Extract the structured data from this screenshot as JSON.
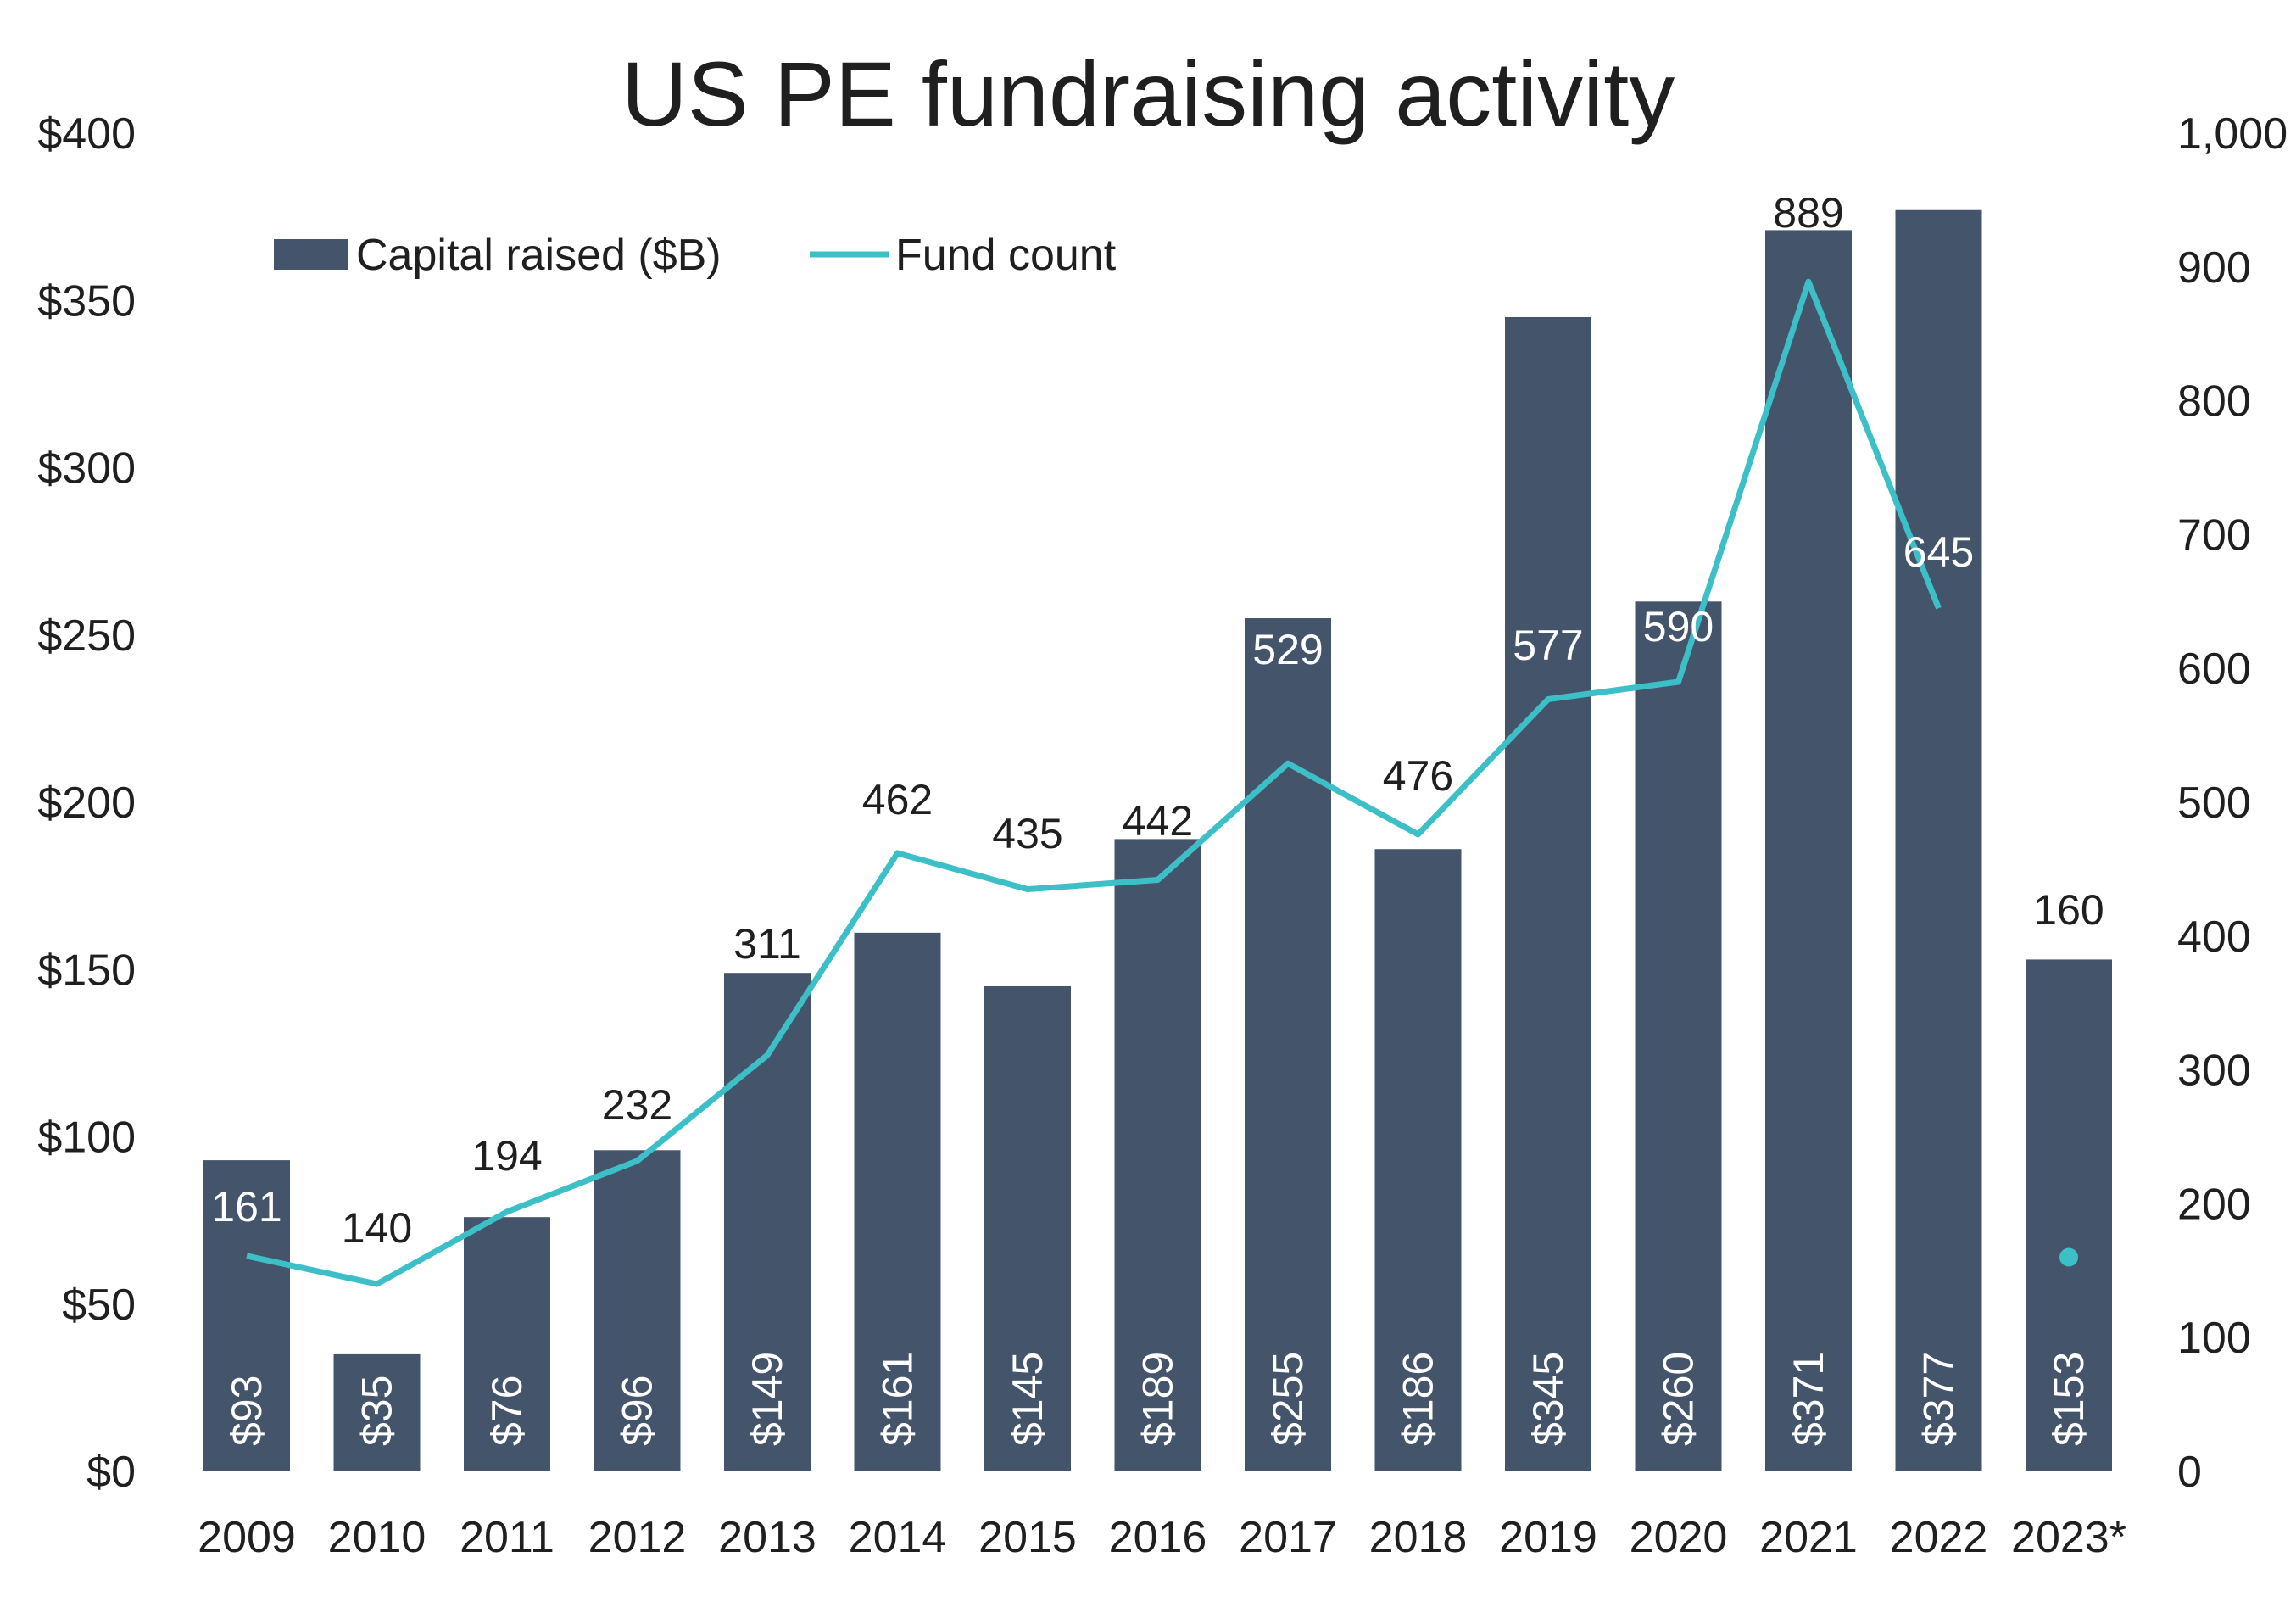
{
  "chart_data": {
    "type": "bar",
    "title": "US PE fundraising activity",
    "categories": [
      "2009",
      "2010",
      "2011",
      "2012",
      "2013",
      "2014",
      "2015",
      "2016",
      "2017",
      "2018",
      "2019",
      "2020",
      "2021",
      "2022",
      "2023*"
    ],
    "series": [
      {
        "name": "Capital raised ($B)",
        "type": "bar",
        "axis": "left",
        "color": "#44546a",
        "values": [
          93,
          35,
          76,
          96,
          149,
          161,
          145,
          189,
          255,
          186,
          345,
          260,
          371,
          377,
          153
        ],
        "labels": [
          "$93",
          "$35",
          "$76",
          "$96",
          "$149",
          "$161",
          "$145",
          "$189",
          "$255",
          "$186",
          "$345",
          "$260",
          "$371",
          "$377",
          "$153"
        ]
      },
      {
        "name": "Fund count",
        "type": "line",
        "axis": "right",
        "color": "#3dbfc8",
        "values": [
          161,
          140,
          194,
          232,
          311,
          462,
          435,
          442,
          529,
          476,
          577,
          590,
          889,
          645,
          160
        ],
        "labels": [
          "161",
          "140",
          "194",
          "232",
          "311",
          "462",
          "435",
          "442",
          "529",
          "476",
          "577",
          "590",
          "889",
          "645",
          "160"
        ]
      }
    ],
    "y_left": {
      "lim": [
        0,
        400
      ],
      "ticks": [
        0,
        50,
        100,
        150,
        200,
        250,
        300,
        350,
        400
      ],
      "tick_labels": [
        "$0",
        "$50",
        "$100",
        "$150",
        "$200",
        "$250",
        "$300",
        "$350",
        "$400"
      ]
    },
    "y_right": {
      "lim": [
        0,
        1000
      ],
      "ticks": [
        0,
        100,
        200,
        300,
        400,
        500,
        600,
        700,
        800,
        900,
        1000
      ],
      "tick_labels": [
        "0",
        "100",
        "200",
        "300",
        "400",
        "500",
        "600",
        "700",
        "800",
        "900",
        "1,000"
      ]
    },
    "grid": false,
    "legend": "top-left"
  }
}
